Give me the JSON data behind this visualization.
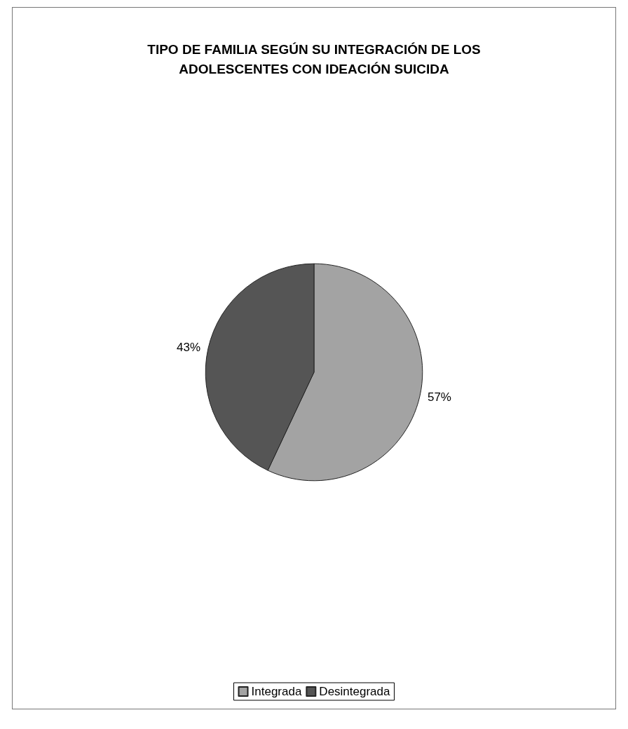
{
  "chart_data": {
    "type": "pie",
    "title": "TIPO DE FAMILIA SEGÚN SU INTEGRACIÓN DE LOS\nADOLESCENTES CON IDEACIÓN SUICIDA",
    "categories": [
      "Integrada",
      "Desintegrada"
    ],
    "values": [
      57,
      43
    ],
    "value_labels": [
      "57%",
      "43%"
    ],
    "colors": [
      "#a3a3a3",
      "#555555"
    ],
    "legend": "bottom"
  }
}
